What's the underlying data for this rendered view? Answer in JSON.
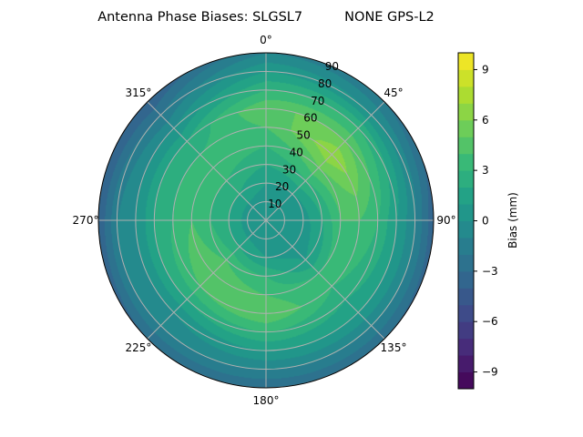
{
  "chart_data": {
    "type": "heatmap",
    "subtype": "polar-filled-contour",
    "title": "Antenna Phase Biases: SLGSL7          NONE GPS-L2",
    "angular_ticks": [
      "0°",
      "45°",
      "90°",
      "135°",
      "180°",
      "225°",
      "270°",
      "315°"
    ],
    "radial_ticks": [
      "10",
      "20",
      "30",
      "40",
      "50",
      "60",
      "70",
      "80",
      "90"
    ],
    "radial_range": [
      0,
      90
    ],
    "angular_direction": "clockwise",
    "zero_location": "top",
    "grid": true,
    "colormap": "viridis",
    "colorbar": {
      "label": "Bias (mm)",
      "range": [
        -10,
        10
      ],
      "level_step": 1,
      "ticks": [
        "−9",
        "−6",
        "−3",
        "0",
        "3",
        "6",
        "9"
      ],
      "tick_values": [
        -9,
        -6,
        -3,
        0,
        3,
        6,
        9
      ]
    },
    "azimuths": [
      0,
      45,
      90,
      135,
      180,
      225,
      270,
      315
    ],
    "zenith": [
      0,
      10,
      20,
      30,
      40,
      50,
      60,
      70,
      80,
      90
    ],
    "values": [
      [
        0.5,
        0.5,
        1,
        2,
        3,
        4,
        5,
        3,
        1,
        -1
      ],
      [
        0.5,
        0,
        1,
        3,
        5,
        7,
        5,
        3,
        0,
        -2
      ],
      [
        0.5,
        0,
        0.5,
        2,
        4,
        4,
        3,
        1,
        -1,
        -4
      ],
      [
        0.5,
        0,
        0.5,
        1,
        3,
        3,
        2,
        1,
        -1,
        -3
      ],
      [
        0.5,
        0.5,
        1,
        3,
        4,
        5,
        3,
        1,
        -1,
        -3
      ],
      [
        0.5,
        0.5,
        2,
        4,
        5,
        4,
        2,
        0,
        -1,
        -3
      ],
      [
        0.5,
        0.5,
        2,
        3,
        4,
        3,
        2,
        0,
        -1,
        -4
      ],
      [
        0.5,
        0.5,
        2,
        3,
        4,
        3,
        2,
        0,
        -2,
        -4
      ]
    ]
  }
}
